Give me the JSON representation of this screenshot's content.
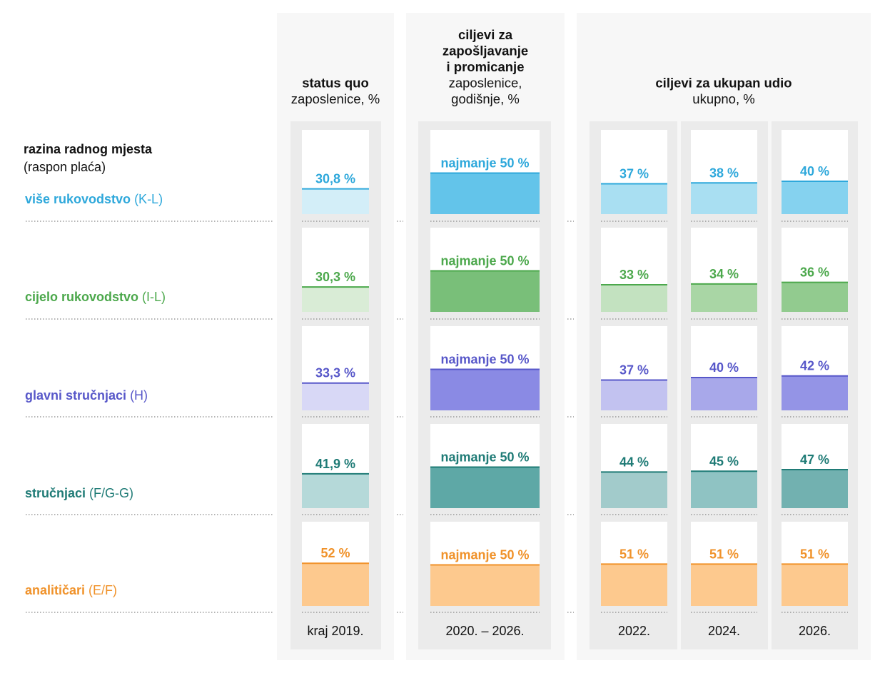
{
  "chart_data": {
    "type": "bar",
    "row_header": {
      "title": "razina radnog mjesta",
      "subtitle": "(raspon plaća)"
    },
    "groups": [
      {
        "title_lines": [
          "status quo"
        ],
        "subtitle_lines": [
          "zaposlenice, %"
        ]
      },
      {
        "title_lines": [
          "ciljevi za",
          "zapošljavanje",
          "i promicanje"
        ],
        "subtitle_lines": [
          "zaposlenice,",
          "godišnje, %"
        ]
      },
      {
        "title_lines": [
          "ciljevi za ukupan udio"
        ],
        "subtitle_lines": [
          "ukupno, %"
        ]
      }
    ],
    "columns": [
      {
        "label": "kraj 2019.",
        "group": 0
      },
      {
        "label": "2020. – 2026.",
        "group": 1
      },
      {
        "label": "2022.",
        "group": 2
      },
      {
        "label": "2024.",
        "group": 2
      },
      {
        "label": "2026.",
        "group": 2
      }
    ],
    "rows": [
      {
        "name": "više rukovodstvo",
        "code": "(K-L)",
        "color": "#2ea8db",
        "fills": [
          "#d3eef8",
          "#63c4ea",
          "#a9dff2",
          "#a9dff2",
          "#85d2ef"
        ]
      },
      {
        "name": "cijelo rukovodstvo",
        "code": "(I-L)",
        "color": "#4ca84c",
        "fills": [
          "#d9ecd6",
          "#79bf79",
          "#c3e2c0",
          "#a9d6a5",
          "#92cb8f"
        ]
      },
      {
        "name": "glavni stručnjaci",
        "code": "(H)",
        "color": "#5757c9",
        "fills": [
          "#d8d8f6",
          "#8a8ae4",
          "#c2c2f0",
          "#a8a8ea",
          "#9494e6"
        ]
      },
      {
        "name": "stručnjaci",
        "code": "(F/G-G)",
        "color": "#1f7b76",
        "fills": [
          "#b5d9d9",
          "#5ea8a6",
          "#a2cbcb",
          "#8fc3c3",
          "#72b1b0"
        ]
      },
      {
        "name": "analitičari",
        "code": "(E/F)",
        "color": "#f0922a",
        "fills": [
          "#fdc98e",
          "#fdc98e",
          "#fdc98e",
          "#fdc98e",
          "#fdc98e"
        ]
      }
    ],
    "values": [
      [
        30.8,
        50,
        37,
        38,
        40
      ],
      [
        30.3,
        50,
        33,
        34,
        36
      ],
      [
        33.3,
        50,
        37,
        40,
        42
      ],
      [
        41.9,
        50,
        44,
        45,
        47
      ],
      [
        52,
        50,
        51,
        51,
        51
      ]
    ],
    "labels": [
      [
        "30,8 %",
        "najmanje 50 %",
        "37 %",
        "38 %",
        "40 %"
      ],
      [
        "30,3 %",
        "najmanje 50 %",
        "33 %",
        "34 %",
        "36 %"
      ],
      [
        "33,3 %",
        "najmanje 50 %",
        "37 %",
        "40 %",
        "42 %"
      ],
      [
        "41,9 %",
        "najmanje 50 %",
        "44 %",
        "45 %",
        "47 %"
      ],
      [
        "52 %",
        "najmanje 50 %",
        "51 %",
        "51 %",
        "51 %"
      ]
    ],
    "ylim": [
      0,
      100
    ],
    "grid": false
  }
}
